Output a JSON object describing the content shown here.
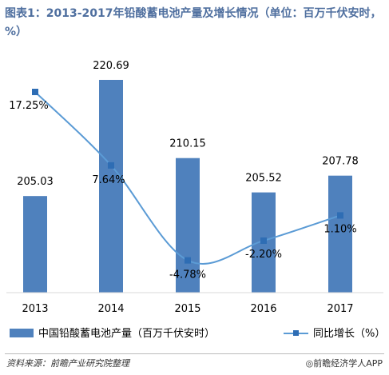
{
  "title": "图表1：2013-2017年铅酸蓄电池产量及增长情况（单位：百万千伏安时，%）",
  "source": "资料来源：前瞻产业研究院整理",
  "brand": "◎前瞻经济学人APP",
  "colors": {
    "bar": "#4f81bd",
    "line": "#5b9bd5",
    "marker": "#2e6db4",
    "title": "#4f6f9f"
  },
  "chart_data": {
    "type": "bar+line",
    "categories": [
      "2013",
      "2014",
      "2015",
      "2016",
      "2017"
    ],
    "series": [
      {
        "name": "中国铅酸蓄电池产量（百万千伏安时）",
        "type": "bar",
        "values": [
          205.03,
          220.69,
          210.15,
          205.52,
          207.78
        ],
        "labels": [
          "205.03",
          "220.69",
          "210.15",
          "205.52",
          "207.78"
        ],
        "ylim": [
          192,
          225
        ]
      },
      {
        "name": "同比增长（%）",
        "type": "line",
        "values": [
          17.25,
          7.64,
          -4.78,
          -2.2,
          1.1
        ],
        "labels": [
          "17.25%",
          "7.64%",
          "-4.78%",
          "-2.20%",
          "1.10%"
        ],
        "ylim": [
          -9,
          23
        ]
      }
    ],
    "legend_position": "bottom",
    "grid": false
  }
}
